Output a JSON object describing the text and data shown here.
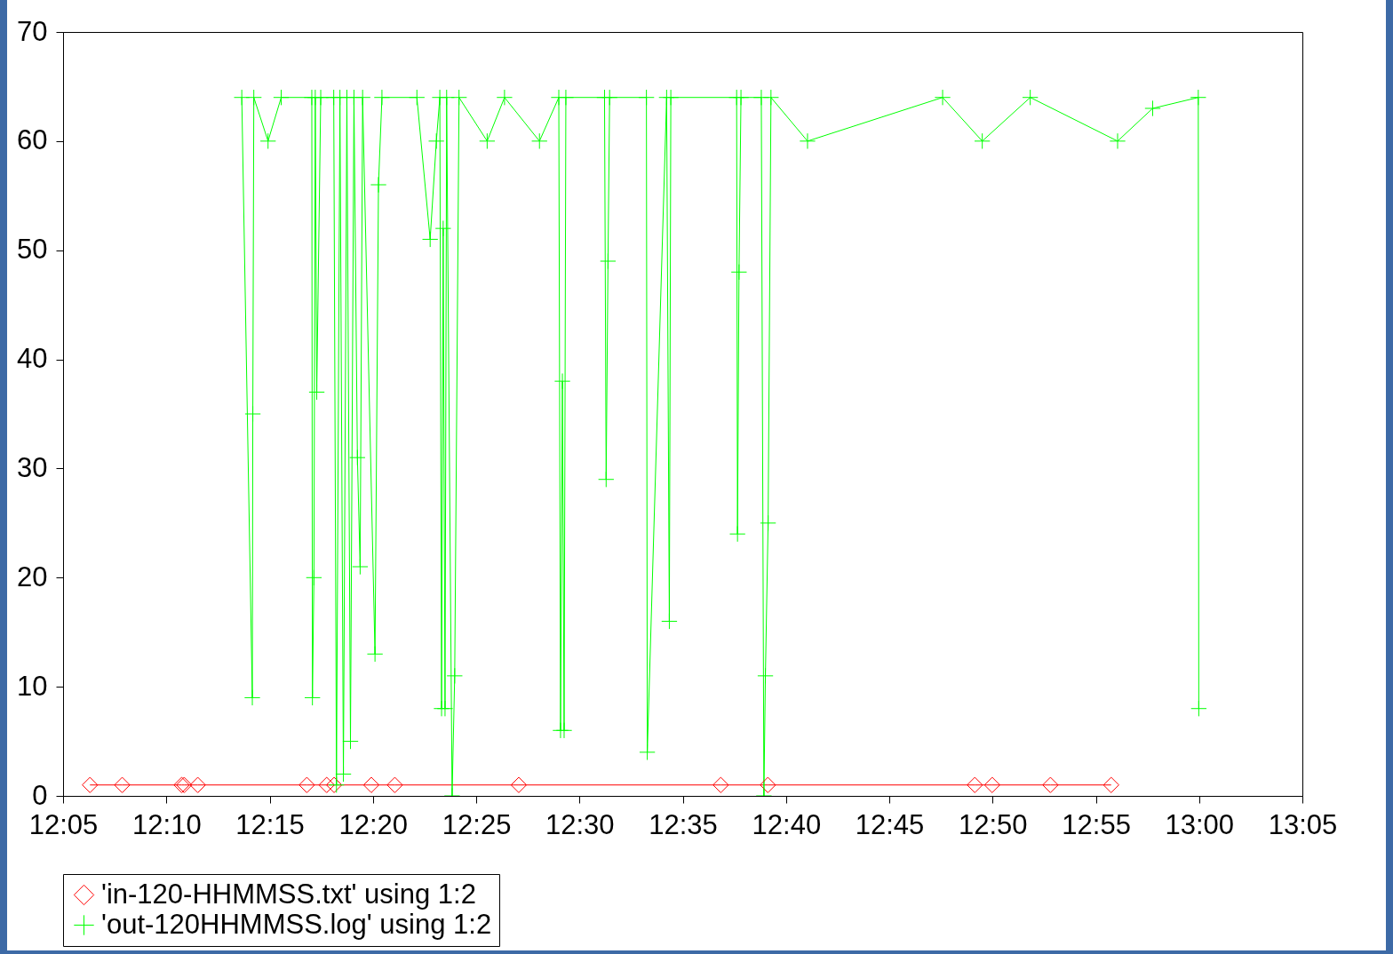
{
  "chart_data": {
    "type": "line",
    "xlim": [
      12.0833,
      13.0833
    ],
    "xticks": [
      {
        "value": 12.0833,
        "label": "12:05"
      },
      {
        "value": 12.1667,
        "label": "12:10"
      },
      {
        "value": 12.25,
        "label": "12:15"
      },
      {
        "value": 12.3333,
        "label": "12:20"
      },
      {
        "value": 12.4167,
        "label": "12:25"
      },
      {
        "value": 12.5,
        "label": "12:30"
      },
      {
        "value": 12.5833,
        "label": "12:35"
      },
      {
        "value": 12.6667,
        "label": "12:40"
      },
      {
        "value": 12.75,
        "label": "12:45"
      },
      {
        "value": 12.8333,
        "label": "12:50"
      },
      {
        "value": 12.9167,
        "label": "12:55"
      },
      {
        "value": 13.0,
        "label": "13:00"
      },
      {
        "value": 13.0833,
        "label": "13:05"
      }
    ],
    "ylim": [
      0,
      70
    ],
    "yticks": [
      0,
      10,
      20,
      30,
      40,
      50,
      60,
      70
    ],
    "grid": false,
    "legend": "bottom",
    "series": [
      {
        "name": "'in-120-HHMMSS.txt' using 1:2",
        "color": "#ff0000",
        "marker": "diamond",
        "x": [
          12.105,
          12.131,
          12.179,
          12.181,
          12.192,
          12.28,
          12.296,
          12.302,
          12.332,
          12.351,
          12.451,
          12.614,
          12.652,
          12.819,
          12.833,
          12.88,
          12.929
        ],
        "values": [
          1,
          1,
          1,
          1,
          1,
          1,
          1,
          1,
          1,
          1,
          1,
          1,
          1,
          1,
          1,
          1,
          1
        ]
      },
      {
        "name": "'out-120HHMMSS.log' using 1:2",
        "color": "#00ff00",
        "marker": "cross",
        "x": [
          12.2275,
          12.236,
          12.2364,
          12.2372,
          12.2487,
          12.2593,
          12.284,
          12.2845,
          12.2857,
          12.2868,
          12.288,
          12.2912,
          12.3017,
          12.3039,
          12.3067,
          12.3095,
          12.3123,
          12.3152,
          12.318,
          12.3208,
          12.323,
          12.325,
          12.335,
          12.3378,
          12.3406,
          12.3688,
          12.3795,
          12.3845,
          12.3873,
          12.3887,
          12.39,
          12.3915,
          12.3928,
          12.3972,
          12.3993,
          12.4028,
          12.4255,
          12.4395,
          12.4677,
          12.4833,
          12.4847,
          12.4862,
          12.4876,
          12.489,
          12.5202,
          12.5215,
          12.523,
          12.5243,
          12.554,
          12.5547,
          12.5703,
          12.5725,
          12.5737,
          12.6268,
          12.6275,
          12.6287,
          12.6303,
          12.6467,
          12.6488,
          12.65,
          12.6522,
          12.6545,
          12.684,
          12.793,
          12.825,
          12.8637,
          12.9342,
          12.9625,
          12.9993,
          12.9997
        ],
        "values": [
          64,
          9,
          35,
          64,
          60,
          64,
          64,
          9,
          20,
          64,
          37,
          64,
          64,
          1,
          64,
          2,
          64,
          5,
          64,
          31,
          21,
          64,
          13,
          56,
          64,
          64,
          51,
          60,
          64,
          8,
          52,
          8,
          64,
          0,
          11,
          64,
          60,
          64,
          60,
          64,
          6,
          38,
          6,
          64,
          64,
          29,
          49,
          64,
          64,
          4,
          64,
          16,
          64,
          64,
          24,
          48,
          64,
          64,
          0,
          11,
          25,
          64,
          60,
          64,
          60,
          64,
          60,
          63,
          64,
          8
        ]
      }
    ]
  }
}
